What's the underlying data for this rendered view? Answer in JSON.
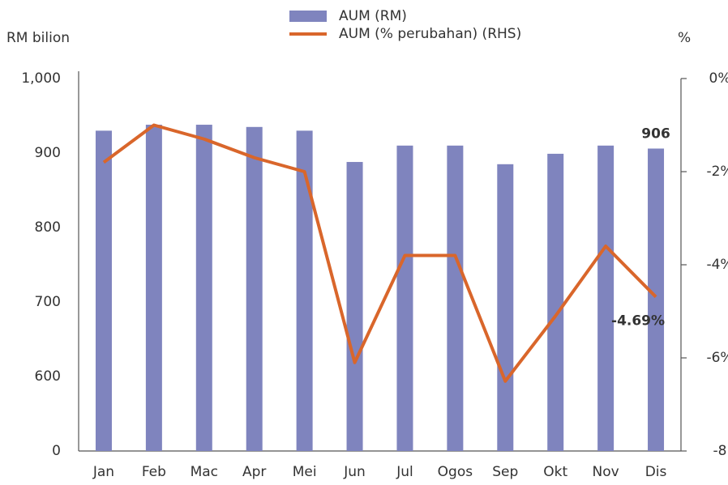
{
  "chart_data": {
    "type": "bar-line",
    "ylabel": "RM bilion",
    "y2label": "%",
    "categories": [
      "Jan",
      "Feb",
      "Mac",
      "Apr",
      "Mei",
      "Jun",
      "Jul",
      "Ogos",
      "Sep",
      "Okt",
      "Nov",
      "Dis"
    ],
    "series": [
      {
        "name": "AUM (RM)",
        "type": "bar",
        "color": "#7f84be",
        "values": [
          930,
          938,
          938,
          935,
          930,
          888,
          910,
          910,
          885,
          899,
          910,
          906
        ],
        "value_labels": [
          null,
          null,
          null,
          null,
          null,
          null,
          null,
          null,
          null,
          null,
          null,
          "906"
        ]
      },
      {
        "name": "AUM (% perubahan) (RHS)",
        "type": "line",
        "axis": "y2",
        "color": "#d9662b",
        "values": [
          -1.8,
          -1.0,
          -1.3,
          -1.7,
          -2.0,
          -6.1,
          -3.8,
          -3.8,
          -6.5,
          -5.1,
          -3.6,
          -4.69
        ],
        "value_labels": [
          null,
          null,
          null,
          null,
          null,
          null,
          null,
          null,
          null,
          null,
          null,
          "-4.69%"
        ]
      }
    ],
    "ylim": [
      0,
      1000
    ],
    "yticks": [
      0,
      600,
      700,
      800,
      900,
      {
        "value": 1000,
        "label": "1,000"
      }
    ],
    "y_axis_broken": true,
    "y2lim": [
      -8,
      0
    ],
    "y2ticks": [
      -8,
      {
        "value": -6,
        "label": "-6%"
      },
      {
        "value": -4,
        "label": "-4%"
      },
      {
        "value": -2,
        "label": "-2%"
      },
      {
        "value": 0,
        "label": "0%"
      }
    ],
    "legend": "top"
  }
}
